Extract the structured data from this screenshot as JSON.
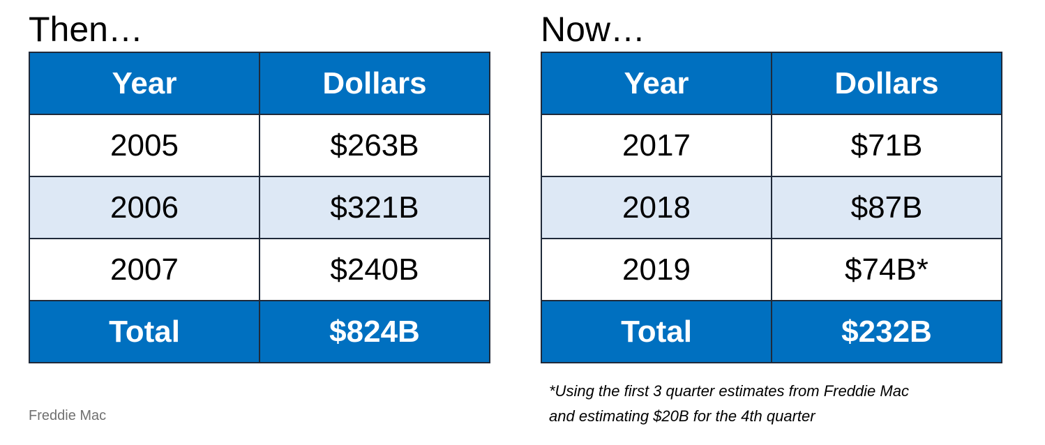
{
  "tables": [
    {
      "title": "Then…",
      "header": [
        "Year",
        "Dollars"
      ],
      "rows": [
        [
          "2005",
          "$263B"
        ],
        [
          "2006",
          "$321B"
        ],
        [
          "2007",
          "$240B"
        ]
      ],
      "total": [
        "Total",
        "$824B"
      ]
    },
    {
      "title": "Now…",
      "header": [
        "Year",
        "Dollars"
      ],
      "rows": [
        [
          "2017",
          "$71B"
        ],
        [
          "2018",
          "$87B"
        ],
        [
          "2019",
          "$74B*"
        ]
      ],
      "total": [
        "Total",
        "$232B"
      ]
    }
  ],
  "source": "Freddie Mac",
  "footnote": [
    "*Using the first 3 quarter estimates from Freddie Mac",
    "and estimating $20B for the 4th quarter"
  ]
}
